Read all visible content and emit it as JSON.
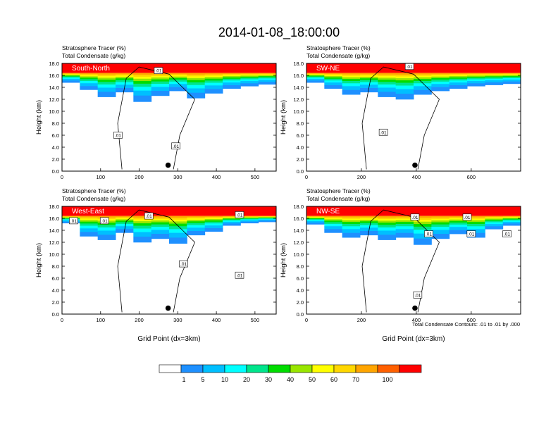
{
  "title": "2014-01-08_18:00:00",
  "colors": {
    "scale": [
      "#ffffff",
      "#1e90ff",
      "#00bfff",
      "#00ffff",
      "#00e58c",
      "#00dd00",
      "#99e600",
      "#ffff00",
      "#ffd700",
      "#ffa500",
      "#ff6000",
      "#ff0000"
    ],
    "contour": "#000000"
  },
  "colorbar": {
    "labels": [
      "1",
      "5",
      "10",
      "20",
      "30",
      "40",
      "50",
      "60",
      "70",
      "100"
    ]
  },
  "footnote": "Total Condensate Contours: .01 to .01 by .000",
  "chart_data": [
    {
      "type": "heatmap",
      "panel_label": "South-North",
      "header": [
        "Stratosphere Tracer   (%)",
        "Total Condensate   (g/kg)"
      ],
      "ylabel": "Height (km)",
      "xlabel": "",
      "ylim": [
        0,
        18
      ],
      "yticks": [
        "0.0",
        "2.0",
        "4.0",
        "6.0",
        "8.0",
        "10.0",
        "12.0",
        "14.0",
        "16.0",
        "18.0"
      ],
      "xlim": [
        0,
        555
      ],
      "xticks": [
        0,
        100,
        200,
        300,
        400,
        500
      ],
      "tracer_base_km": [
        14.8,
        13.6,
        12.4,
        13.2,
        11.6,
        12.6,
        13.4,
        12.2,
        13.0,
        13.8,
        14.2,
        14.5
      ],
      "contour_labels": [
        {
          "text": ".01",
          "x": 250,
          "y": 16.8
        },
        {
          "text": ".01",
          "x": 145,
          "y": 6.0
        },
        {
          "text": ".01",
          "x": 295,
          "y": 4.2
        }
      ],
      "marker": {
        "x": 275,
        "y": 1.0
      }
    },
    {
      "type": "heatmap",
      "panel_label": "SW-NE",
      "header": [
        "Stratosphere Tracer   (%)",
        "Total Condensate   (g/kg)"
      ],
      "ylabel": "Height (km)",
      "xlabel": "",
      "ylim": [
        0,
        18
      ],
      "yticks": [
        "0.0",
        "2.0",
        "4.0",
        "6.0",
        "8.0",
        "10.0",
        "12.0",
        "14.0",
        "16.0",
        "18.0"
      ],
      "xlim": [
        0,
        780
      ],
      "xticks": [
        0,
        200,
        400,
        600
      ],
      "tracer_base_km": [
        14.8,
        13.8,
        12.8,
        13.2,
        12.4,
        12.0,
        12.8,
        13.4,
        13.8,
        14.2,
        14.4,
        14.6
      ],
      "contour_labels": [
        {
          "text": ".01",
          "x": 375,
          "y": 17.5
        },
        {
          "text": ".01",
          "x": 280,
          "y": 6.5
        }
      ],
      "marker": {
        "x": 395,
        "y": 1.0
      }
    },
    {
      "type": "heatmap",
      "panel_label": "West-East",
      "header": [
        "Stratosphere Tracer   (%)",
        "Total Condensate   (g/kg)"
      ],
      "ylabel": "Height (km)",
      "xlabel": "Grid Point (dx=3km)",
      "ylim": [
        0,
        18
      ],
      "yticks": [
        "0.0",
        "2.0",
        "4.0",
        "6.0",
        "8.0",
        "10.0",
        "12.0",
        "14.0",
        "16.0",
        "18.0"
      ],
      "xlim": [
        0,
        555
      ],
      "xticks": [
        0,
        100,
        200,
        300,
        400,
        500
      ],
      "tracer_base_km": [
        15.2,
        13.0,
        12.4,
        13.6,
        12.0,
        12.6,
        11.8,
        13.2,
        13.8,
        14.8,
        15.2,
        15.4
      ],
      "contour_labels": [
        {
          "text": ".01",
          "x": 30,
          "y": 15.6
        },
        {
          "text": ".01",
          "x": 110,
          "y": 15.6
        },
        {
          "text": ".01",
          "x": 225,
          "y": 16.4
        },
        {
          "text": ".01",
          "x": 460,
          "y": 16.6
        },
        {
          "text": ".01",
          "x": 315,
          "y": 8.4
        },
        {
          "text": ".01",
          "x": 460,
          "y": 6.5
        }
      ],
      "marker": {
        "x": 275,
        "y": 1.0
      }
    },
    {
      "type": "heatmap",
      "panel_label": "NW-SE",
      "header": [
        "Stratosphere Tracer   (%)",
        "Total Condensate   (g/kg)"
      ],
      "ylabel": "Height (km)",
      "xlabel": "Grid Point (dx=3km)",
      "ylim": [
        0,
        18
      ],
      "yticks": [
        "0.0",
        "2.0",
        "4.0",
        "6.0",
        "8.0",
        "10.0",
        "12.0",
        "14.0",
        "16.0",
        "18.0"
      ],
      "xlim": [
        0,
        780
      ],
      "xticks": [
        0,
        200,
        400,
        600
      ],
      "tracer_base_km": [
        15.0,
        13.6,
        12.8,
        13.2,
        12.4,
        12.8,
        11.6,
        12.6,
        13.4,
        12.8,
        14.2,
        14.8
      ],
      "contour_labels": [
        {
          "text": ".01",
          "x": 395,
          "y": 16.2
        },
        {
          "text": ".01",
          "x": 585,
          "y": 16.2
        },
        {
          "text": ".01",
          "x": 445,
          "y": 13.4
        },
        {
          "text": ".01",
          "x": 600,
          "y": 13.4
        },
        {
          "text": ".01",
          "x": 730,
          "y": 13.4
        },
        {
          "text": ".01",
          "x": 405,
          "y": 3.2
        }
      ],
      "marker": {
        "x": 395,
        "y": 1.0
      }
    }
  ]
}
